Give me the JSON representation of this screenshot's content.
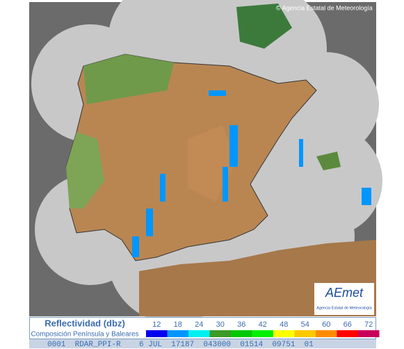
{
  "attribution": "© Agencia Estatal de Meteorología",
  "logo": {
    "text": "AEmet",
    "subtitle": "Agencia Estatal de Meteorología"
  },
  "legend": {
    "title": "Reflectividad (dbz)",
    "subtitle": "Composición Península y Baleares",
    "levels": [
      {
        "label": 12,
        "color": "#0000f0"
      },
      {
        "label": 18,
        "color": "#0096ff"
      },
      {
        "label": 24,
        "color": "#00f0f0"
      },
      {
        "label": 30,
        "color": "#3c9a28"
      },
      {
        "label": 36,
        "color": "#00c800"
      },
      {
        "label": 42,
        "color": "#00f000"
      },
      {
        "label": 48,
        "color": "#ffff00"
      },
      {
        "label": 54,
        "color": "#ffc800"
      },
      {
        "label": 60,
        "color": "#ff8c00"
      },
      {
        "label": 66,
        "color": "#ff0000"
      },
      {
        "label": 72,
        "color": "#c8005a"
      }
    ]
  },
  "status_bar": "0001  RDAR_PPI-R    6 JUL  17187  043000  01514  09751  01"
}
